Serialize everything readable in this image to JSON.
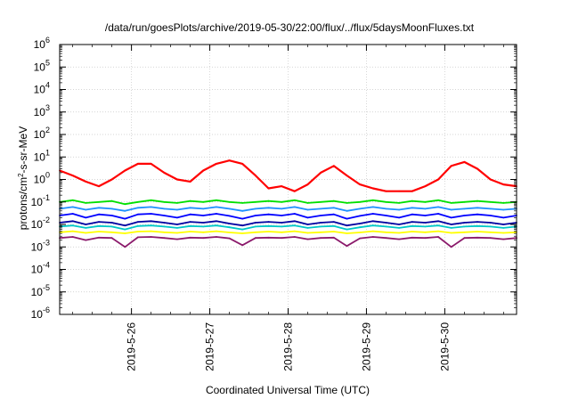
{
  "chart_data": {
    "type": "line",
    "title": "/data/run/goesPlots/archive/2019-05-30/22:00/flux/../flux/5daysMoonFluxes.txt",
    "xlabel": "Coordinated Universal Time (UTC)",
    "ylabel": "protons/cm²-s-sr-MeV",
    "ylabel_parts": {
      "before": "protons/cm",
      "sup": "2",
      "after": "-s-sr-MeV"
    },
    "y_scale": "log",
    "ylim": [
      1e-06,
      1000000.0
    ],
    "y_ticks": [
      {
        "base": "10",
        "exp": "-6"
      },
      {
        "base": "10",
        "exp": "-5"
      },
      {
        "base": "10",
        "exp": "-4"
      },
      {
        "base": "10",
        "exp": "-3"
      },
      {
        "base": "10",
        "exp": "-2"
      },
      {
        "base": "10",
        "exp": "-1"
      },
      {
        "base": "10",
        "exp": "0"
      },
      {
        "base": "10",
        "exp": "1"
      },
      {
        "base": "10",
        "exp": "2"
      },
      {
        "base": "10",
        "exp": "3"
      },
      {
        "base": "10",
        "exp": "4"
      },
      {
        "base": "10",
        "exp": "5"
      },
      {
        "base": "10",
        "exp": "6"
      }
    ],
    "xlim": [
      "2019-05-25T02:00",
      "2019-05-30T22:00"
    ],
    "x_ticks": [
      "2019-5-26",
      "2019-5-27",
      "2019-5-28",
      "2019-5-29",
      "2019-5-30"
    ],
    "grid": true,
    "legend": "none",
    "x": [
      "2019-05-25T02:00",
      "2019-05-25T06:00",
      "2019-05-25T10:00",
      "2019-05-25T14:00",
      "2019-05-25T18:00",
      "2019-05-25T22:00",
      "2019-05-26T02:00",
      "2019-05-26T06:00",
      "2019-05-26T10:00",
      "2019-05-26T14:00",
      "2019-05-26T18:00",
      "2019-05-26T22:00",
      "2019-05-27T02:00",
      "2019-05-27T06:00",
      "2019-05-27T10:00",
      "2019-05-27T14:00",
      "2019-05-27T18:00",
      "2019-05-27T22:00",
      "2019-05-28T02:00",
      "2019-05-28T06:00",
      "2019-05-28T10:00",
      "2019-05-28T14:00",
      "2019-05-28T18:00",
      "2019-05-28T22:00",
      "2019-05-29T02:00",
      "2019-05-29T06:00",
      "2019-05-29T10:00",
      "2019-05-29T14:00",
      "2019-05-29T18:00",
      "2019-05-29T22:00",
      "2019-05-30T02:00",
      "2019-05-30T06:00",
      "2019-05-30T10:00",
      "2019-05-30T14:00",
      "2019-05-30T18:00",
      "2019-05-30T22:00"
    ],
    "series": [
      {
        "color": "#ff0000",
        "values": [
          2.5,
          1.5,
          0.8,
          0.5,
          1.0,
          2.5,
          5.0,
          5.0,
          2.0,
          1.0,
          0.8,
          2.5,
          5.0,
          7.0,
          5.0,
          1.5,
          0.4,
          0.5,
          0.3,
          0.6,
          2.0,
          4.0,
          1.5,
          0.6,
          0.4,
          0.3,
          0.3,
          0.3,
          0.5,
          1.0,
          4.0,
          6.0,
          3.0,
          1.0,
          0.6,
          0.5
        ]
      },
      {
        "color": "#00e000",
        "values": [
          0.1,
          0.12,
          0.09,
          0.1,
          0.11,
          0.08,
          0.1,
          0.12,
          0.1,
          0.09,
          0.11,
          0.1,
          0.12,
          0.1,
          0.09,
          0.1,
          0.11,
          0.1,
          0.12,
          0.09,
          0.1,
          0.11,
          0.09,
          0.1,
          0.12,
          0.1,
          0.09,
          0.11,
          0.1,
          0.12,
          0.09,
          0.1,
          0.11,
          0.1,
          0.09,
          0.1
        ]
      },
      {
        "color": "#1e90ff",
        "values": [
          0.05,
          0.06,
          0.045,
          0.055,
          0.05,
          0.04,
          0.055,
          0.06,
          0.05,
          0.045,
          0.055,
          0.05,
          0.06,
          0.05,
          0.04,
          0.05,
          0.055,
          0.05,
          0.06,
          0.045,
          0.05,
          0.055,
          0.04,
          0.05,
          0.06,
          0.05,
          0.045,
          0.055,
          0.05,
          0.06,
          0.045,
          0.05,
          0.055,
          0.05,
          0.045,
          0.05
        ]
      },
      {
        "color": "#0000ff",
        "values": [
          0.025,
          0.03,
          0.02,
          0.028,
          0.025,
          0.018,
          0.028,
          0.03,
          0.025,
          0.02,
          0.028,
          0.025,
          0.03,
          0.024,
          0.018,
          0.025,
          0.028,
          0.025,
          0.03,
          0.02,
          0.025,
          0.028,
          0.018,
          0.024,
          0.03,
          0.025,
          0.02,
          0.028,
          0.025,
          0.03,
          0.02,
          0.025,
          0.028,
          0.025,
          0.02,
          0.025
        ]
      },
      {
        "color": "#0000a0",
        "values": [
          0.012,
          0.014,
          0.01,
          0.013,
          0.012,
          0.009,
          0.013,
          0.014,
          0.012,
          0.01,
          0.013,
          0.012,
          0.014,
          0.011,
          0.009,
          0.012,
          0.013,
          0.012,
          0.014,
          0.01,
          0.012,
          0.013,
          0.009,
          0.011,
          0.014,
          0.012,
          0.01,
          0.013,
          0.012,
          0.014,
          0.01,
          0.012,
          0.013,
          0.012,
          0.01,
          0.012
        ]
      },
      {
        "color": "#00c8c8",
        "values": [
          0.008,
          0.009,
          0.007,
          0.0085,
          0.008,
          0.006,
          0.0085,
          0.009,
          0.008,
          0.007,
          0.0085,
          0.008,
          0.009,
          0.0075,
          0.006,
          0.008,
          0.0085,
          0.008,
          0.009,
          0.007,
          0.008,
          0.0085,
          0.006,
          0.0075,
          0.009,
          0.008,
          0.007,
          0.0085,
          0.008,
          0.009,
          0.007,
          0.008,
          0.0085,
          0.008,
          0.007,
          0.008
        ]
      },
      {
        "color": "#ffff00",
        "values": [
          0.0045,
          0.005,
          0.0042,
          0.0048,
          0.0045,
          0.004,
          0.0048,
          0.005,
          0.0045,
          0.0042,
          0.0048,
          0.0045,
          0.005,
          0.0044,
          0.004,
          0.0045,
          0.0048,
          0.0045,
          0.005,
          0.0042,
          0.0045,
          0.0048,
          0.004,
          0.0044,
          0.005,
          0.0045,
          0.0042,
          0.0048,
          0.0045,
          0.005,
          0.0042,
          0.0045,
          0.0048,
          0.0045,
          0.0042,
          0.0045
        ]
      },
      {
        "color": "#8b1a6b",
        "values": [
          0.0025,
          0.0028,
          0.002,
          0.0026,
          0.0025,
          0.001,
          0.0027,
          0.0028,
          0.0025,
          0.0022,
          0.0026,
          0.0025,
          0.0028,
          0.0024,
          0.0012,
          0.0025,
          0.0026,
          0.0025,
          0.0028,
          0.0022,
          0.0025,
          0.0026,
          0.0011,
          0.0024,
          0.0028,
          0.0025,
          0.0022,
          0.0026,
          0.0025,
          0.0028,
          0.001,
          0.0025,
          0.0026,
          0.0025,
          0.0022,
          0.0025
        ]
      }
    ]
  }
}
